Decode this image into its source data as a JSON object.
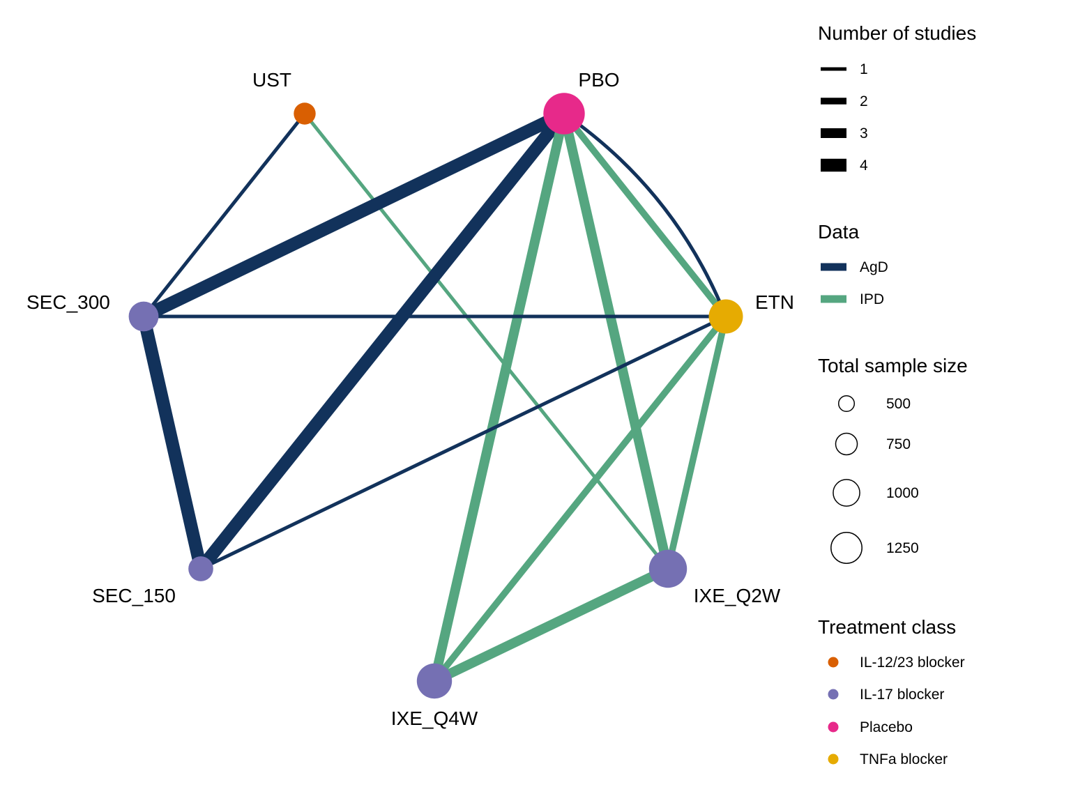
{
  "network": {
    "colors": {
      "AgD": "#12325b",
      "IPD": "#55a680",
      "IL-12/23 blocker": "#d95f02",
      "IL-17 blocker": "#7570b3",
      "Placebo": "#e7298a",
      "TNFa blocker": "#e6ab02"
    },
    "nodes": [
      {
        "id": "UST",
        "label": "UST",
        "class": "IL-12/23 blocker",
        "sample_size": 350
      },
      {
        "id": "PBO",
        "label": "PBO",
        "class": "Placebo",
        "sample_size": 1250
      },
      {
        "id": "ETN",
        "label": "ETN",
        "class": "TNFa blocker",
        "sample_size": 850
      },
      {
        "id": "IXE_Q2W",
        "label": "IXE_Q2W",
        "class": "IL-17 blocker",
        "sample_size": 1050
      },
      {
        "id": "IXE_Q4W",
        "label": "IXE_Q4W",
        "class": "IL-17 blocker",
        "sample_size": 900
      },
      {
        "id": "SEC_150",
        "label": "SEC_150",
        "class": "IL-17 blocker",
        "sample_size": 450
      },
      {
        "id": "SEC_300",
        "label": "SEC_300",
        "class": "IL-17 blocker",
        "sample_size": 650
      }
    ],
    "edges": [
      {
        "from": "UST",
        "to": "SEC_300",
        "data": "AgD",
        "studies": 1
      },
      {
        "from": "UST",
        "to": "IXE_Q2W",
        "data": "IPD",
        "studies": 1
      },
      {
        "from": "PBO",
        "to": "SEC_300",
        "data": "AgD",
        "studies": 4
      },
      {
        "from": "PBO",
        "to": "SEC_150",
        "data": "AgD",
        "studies": 4
      },
      {
        "from": "PBO",
        "to": "IXE_Q4W",
        "data": "IPD",
        "studies": 3
      },
      {
        "from": "PBO",
        "to": "IXE_Q2W",
        "data": "IPD",
        "studies": 3
      },
      {
        "from": "PBO",
        "to": "ETN",
        "data": "IPD",
        "studies": 2
      },
      {
        "from": "PBO",
        "to": "ETN",
        "data": "AgD",
        "studies": 1,
        "curved": true
      },
      {
        "from": "SEC_300",
        "to": "ETN",
        "data": "AgD",
        "studies": 1
      },
      {
        "from": "SEC_300",
        "to": "SEC_150",
        "data": "AgD",
        "studies": 4
      },
      {
        "from": "SEC_150",
        "to": "ETN",
        "data": "AgD",
        "studies": 1
      },
      {
        "from": "ETN",
        "to": "IXE_Q4W",
        "data": "IPD",
        "studies": 2
      },
      {
        "from": "ETN",
        "to": "IXE_Q2W",
        "data": "IPD",
        "studies": 2
      },
      {
        "from": "IXE_Q4W",
        "to": "IXE_Q2W",
        "data": "IPD",
        "studies": 3
      }
    ]
  },
  "legend": {
    "studies": {
      "title": "Number of studies",
      "items": [
        {
          "label": "1",
          "value": 1
        },
        {
          "label": "2",
          "value": 2
        },
        {
          "label": "3",
          "value": 3
        },
        {
          "label": "4",
          "value": 4
        }
      ]
    },
    "data": {
      "title": "Data",
      "items": [
        {
          "label": "AgD",
          "key": "AgD"
        },
        {
          "label": "IPD",
          "key": "IPD"
        }
      ]
    },
    "sample_size": {
      "title": "Total sample size",
      "items": [
        {
          "label": "500",
          "value": 500
        },
        {
          "label": "750",
          "value": 750
        },
        {
          "label": "1000",
          "value": 1000
        },
        {
          "label": "1250",
          "value": 1250
        }
      ]
    },
    "treatment_class": {
      "title": "Treatment class",
      "items": [
        {
          "label": "IL-12/23 blocker",
          "key": "IL-12/23 blocker"
        },
        {
          "label": "IL-17 blocker",
          "key": "IL-17 blocker"
        },
        {
          "label": "Placebo",
          "key": "Placebo"
        },
        {
          "label": "TNFa blocker",
          "key": "TNFa blocker"
        }
      ]
    }
  }
}
